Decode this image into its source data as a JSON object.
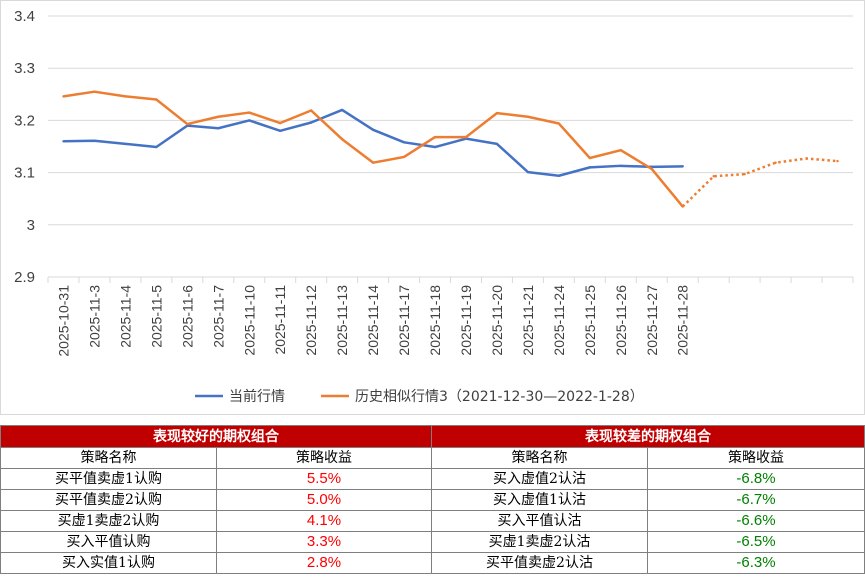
{
  "chart_data": {
    "type": "line",
    "title": "",
    "xlabel": "",
    "ylabel": "",
    "ylim": [
      2.9,
      3.4
    ],
    "yticks": [
      "2.9",
      "3",
      "3.1",
      "3.2",
      "3.3",
      "3.4"
    ],
    "categories": [
      "2025-10-31",
      "2025-11-3",
      "2025-11-4",
      "2025-11-5",
      "2025-11-6",
      "2025-11-7",
      "2025-11-10",
      "2025-11-11",
      "2025-11-12",
      "2025-11-13",
      "2025-11-14",
      "2025-11-17",
      "2025-11-18",
      "2025-11-19",
      "2025-11-20",
      "2025-11-21",
      "2025-11-24",
      "2025-11-25",
      "2025-11-26",
      "2025-11-27",
      "2025-11-28",
      "",
      "",
      "",
      "",
      ""
    ],
    "grid": "horizontal",
    "legend_position": "bottom",
    "series": [
      {
        "name": "当前行情",
        "color": "#4472c4",
        "style": "solid",
        "values": [
          3.16,
          3.161,
          3.155,
          3.149,
          3.19,
          3.185,
          3.2,
          3.18,
          3.196,
          3.22,
          3.182,
          3.158,
          3.149,
          3.165,
          3.155,
          3.101,
          3.094,
          3.11,
          3.113,
          3.111,
          3.112,
          null,
          null,
          null,
          null,
          null
        ]
      },
      {
        "name": "历史相似行情3（2021-12-30—2022-1-28）",
        "color": "#ed7d31",
        "style": "solid-then-dotted",
        "dotted_from_index": 20,
        "values": [
          3.246,
          3.255,
          3.246,
          3.24,
          3.193,
          3.207,
          3.215,
          3.195,
          3.219,
          3.164,
          3.119,
          3.13,
          3.168,
          3.168,
          3.214,
          3.207,
          3.194,
          3.128,
          3.143,
          3.107,
          3.035,
          3.093,
          3.097,
          3.119,
          3.127,
          3.122
        ]
      }
    ]
  },
  "table": {
    "good_header": "表现较好的期权组合",
    "bad_header": "表现较差的期权组合",
    "col_name": "策略名称",
    "col_return": "策略收益",
    "rows": [
      {
        "good_name": "买平值卖虚1认购",
        "good_ret": "5.5%",
        "bad_name": "买入虚值2认沽",
        "bad_ret": "-6.8%"
      },
      {
        "good_name": "买平值卖虚2认购",
        "good_ret": "5.0%",
        "bad_name": "买入虚值1认沽",
        "bad_ret": "-6.7%"
      },
      {
        "good_name": "买虚1卖虚2认购",
        "good_ret": "4.1%",
        "bad_name": "买入平值认沽",
        "bad_ret": "-6.6%"
      },
      {
        "good_name": "买入平值认购",
        "good_ret": "3.3%",
        "bad_name": "买虚1卖虚2认沽",
        "bad_ret": "-6.5%"
      },
      {
        "good_name": "买入实值1认购",
        "good_ret": "2.8%",
        "bad_name": "买平值卖虚2认沽",
        "bad_ret": "-6.3%"
      }
    ]
  }
}
